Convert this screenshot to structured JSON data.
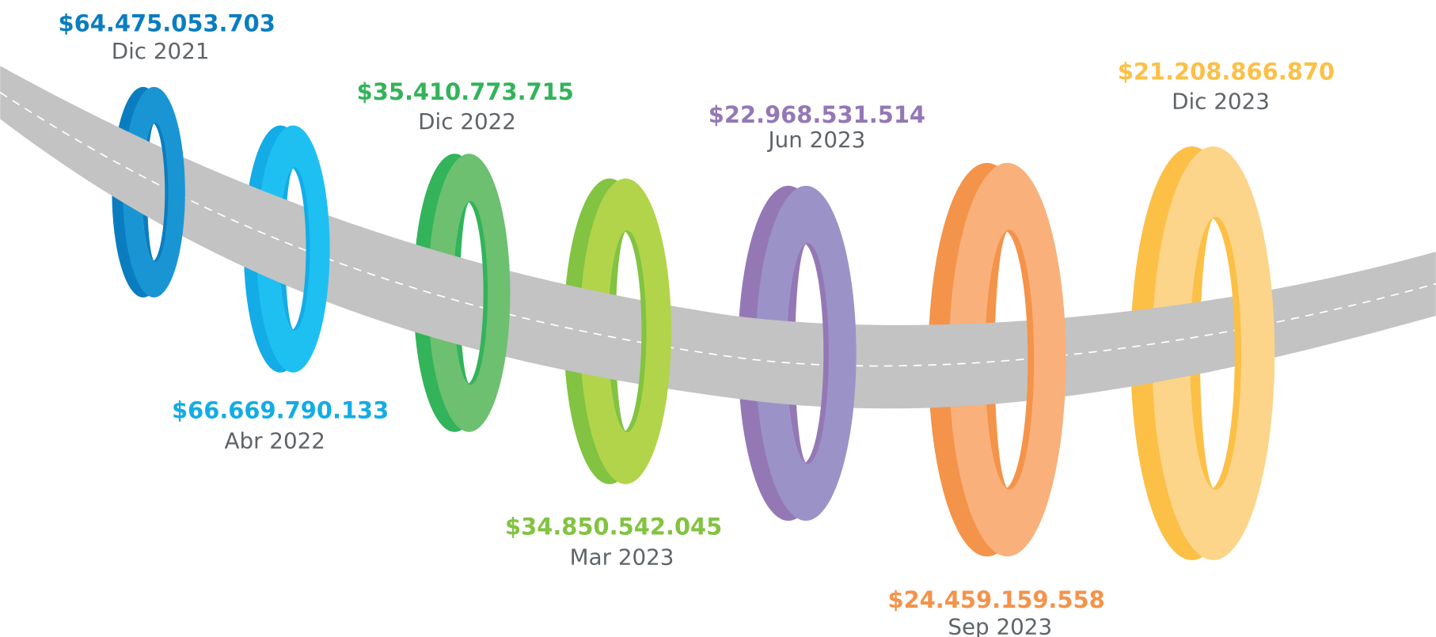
{
  "milestones": [
    {
      "amount": "$64.475.053.703",
      "date": "Dic 2021",
      "color": "#0a7dc0"
    },
    {
      "amount": "$66.669.790.133",
      "date": "Abr 2022",
      "color": "#13ace6"
    },
    {
      "amount": "$35.410.773.715",
      "date": "Dic 2022",
      "color": "#33b35a"
    },
    {
      "amount": "$34.850.542.045",
      "date": "Mar 2023",
      "color": "#82c341"
    },
    {
      "amount": "$22.968.531.514",
      "date": "Jun 2023",
      "color": "#9478b6"
    },
    {
      "amount": "$24.459.159.558",
      "date": "Sep 2023",
      "color": "#f4934a"
    },
    {
      "amount": "$21.208.866.870",
      "date": "Dic 2023",
      "color": "#fcc047"
    }
  ]
}
